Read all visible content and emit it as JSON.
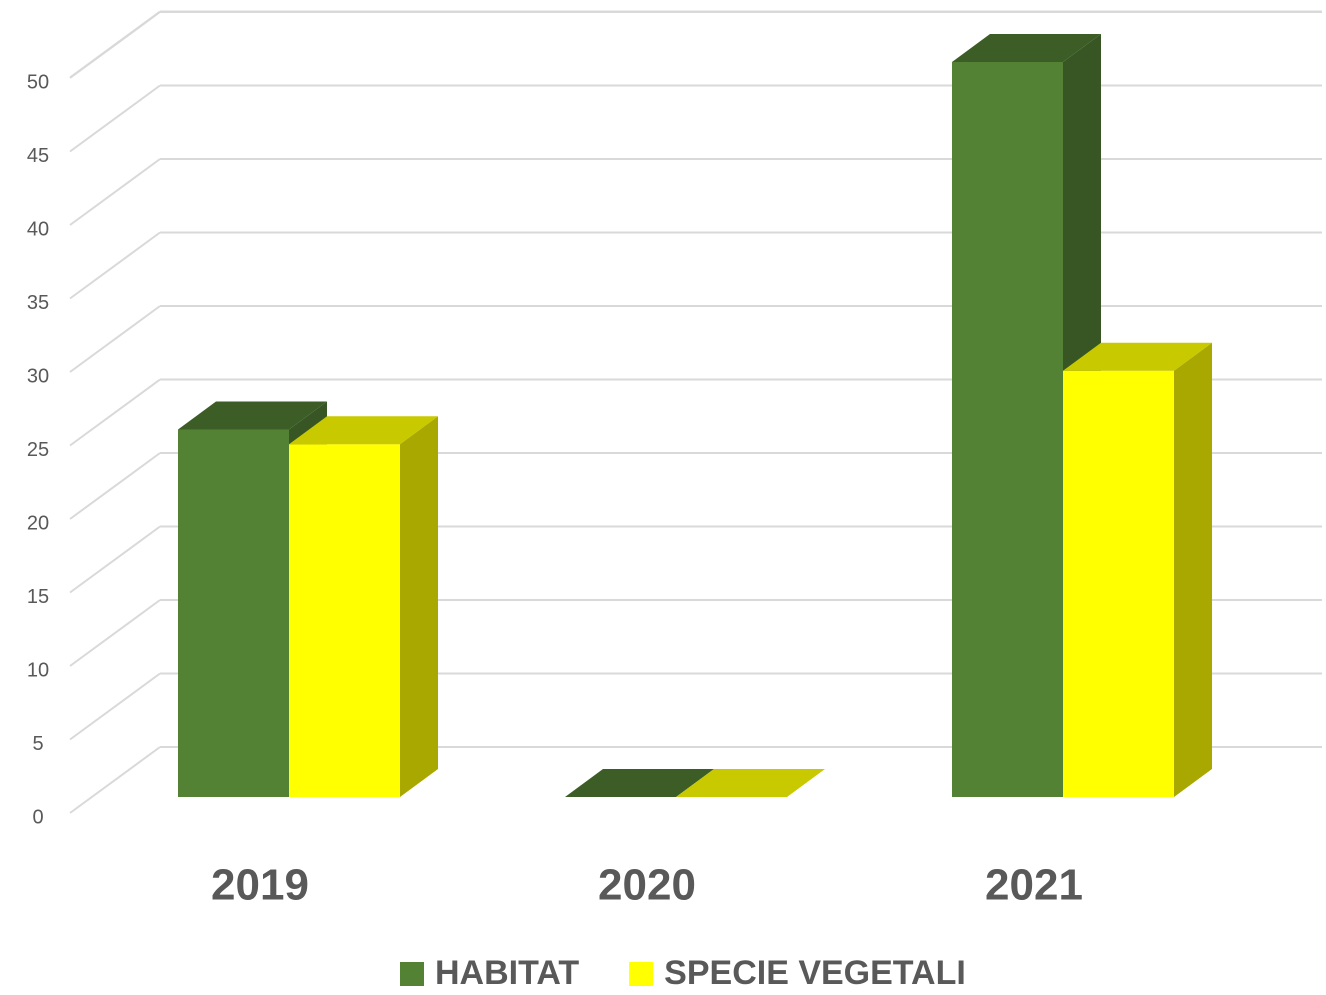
{
  "chart_data": {
    "type": "bar3d",
    "categories": [
      "2019",
      "2020",
      "2021"
    ],
    "series": [
      {
        "name": "HABITAT",
        "color": "#548235",
        "values": [
          25,
          0,
          50
        ]
      },
      {
        "name": "SPECIE VEGETALI",
        "color": "#ffff00",
        "values": [
          24,
          0,
          29
        ]
      }
    ],
    "ylim": [
      0,
      55
    ],
    "yticks": [
      0,
      5,
      10,
      15,
      20,
      25,
      30,
      35,
      40,
      45,
      50
    ],
    "grid": true,
    "legend": "bottom"
  }
}
